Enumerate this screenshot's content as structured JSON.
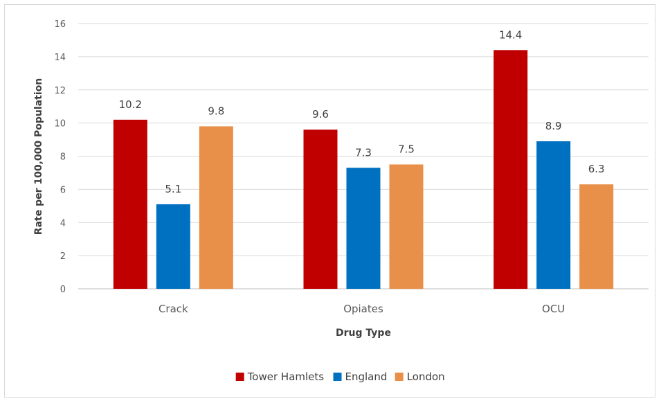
{
  "chart_data": {
    "type": "bar",
    "categories": [
      "Crack",
      "Opiates",
      "OCU"
    ],
    "series": [
      {
        "name": "Tower Hamlets",
        "color": "#c00000",
        "values": [
          10.2,
          9.6,
          14.4
        ]
      },
      {
        "name": "England",
        "color": "#0070c0",
        "values": [
          5.1,
          7.3,
          8.9
        ]
      },
      {
        "name": "London",
        "color": "#e8904a",
        "values": [
          9.8,
          7.5,
          6.3
        ]
      }
    ],
    "title": "",
    "xlabel": "Drug Type",
    "ylabel": "Rate per 100,000 Population",
    "ylim": [
      0,
      16
    ],
    "yticks": [
      0,
      2,
      4,
      6,
      8,
      10,
      12,
      14,
      16
    ],
    "grid": true,
    "legend_position": "bottom",
    "data_labels": true
  }
}
